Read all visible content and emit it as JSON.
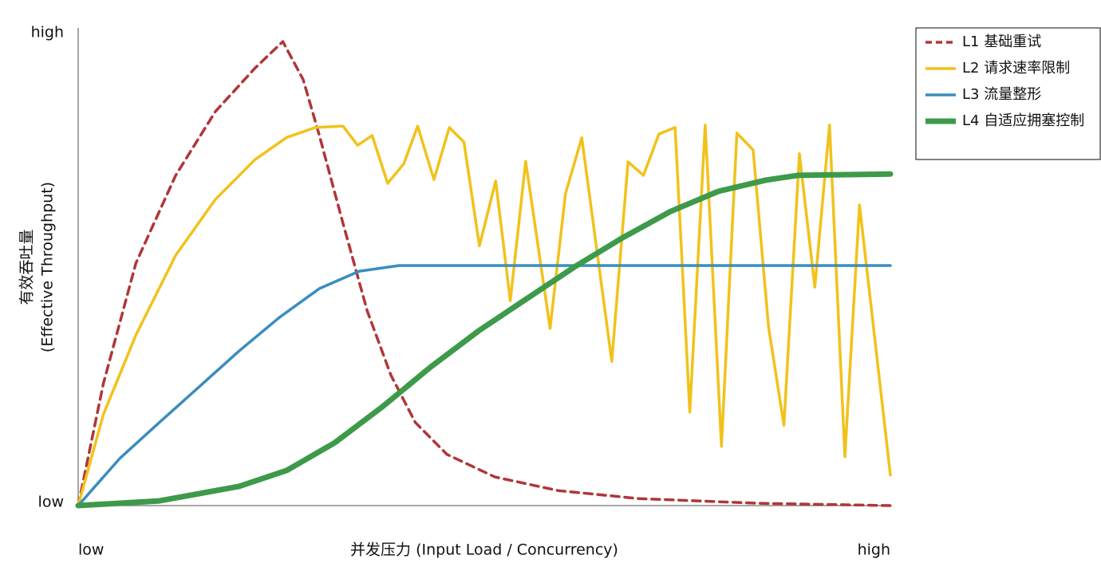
{
  "chart_data": {
    "type": "line",
    "x_label": "并发压力 (Input Load / Concurrency)",
    "y_label": [
      "有效吞吐量",
      "(Effective Throughput)"
    ],
    "xlim": [
      0,
      100
    ],
    "ylim": [
      0,
      100
    ],
    "xticks": [
      {
        "value": 0,
        "label": "low"
      },
      {
        "value": 100,
        "label": "high"
      }
    ],
    "yticks": [
      {
        "value": 0,
        "label": "low"
      },
      {
        "value": 100,
        "label": "high"
      }
    ],
    "grid": false,
    "legend_location": "upper right",
    "series": [
      {
        "name": "L1 基础重试",
        "color": "#b0363a",
        "line_style": "dashed",
        "x": [
          0,
          3.1,
          7.1,
          12,
          16.9,
          21.8,
          25.2,
          27.7,
          29.7,
          32.6,
          35.6,
          38.5,
          41.5,
          45.4,
          51.3,
          59.1,
          69,
          83.7,
          100
        ],
        "values": [
          0,
          26,
          51.6,
          70.3,
          83.9,
          93.2,
          98.8,
          90.7,
          78.8,
          60.1,
          41.4,
          27.8,
          17.7,
          10.9,
          6.1,
          3.2,
          1.5,
          0.5,
          0
        ]
      },
      {
        "name": "L2 请求速率限制",
        "color": "#f2c21b",
        "line_style": "solid",
        "x": [
          0,
          3.1,
          7.1,
          12,
          16.9,
          21.8,
          25.7,
          29.2,
          32.6,
          34.4,
          36.2,
          38.1,
          40.1,
          41.8,
          43.8,
          45.7,
          47.5,
          49.4,
          51.4,
          53.2,
          55.1,
          58.1,
          60,
          62,
          65.7,
          67.7,
          69.6,
          71.5,
          73.5,
          75.3,
          77.2,
          79.2,
          81.1,
          83.1,
          85,
          86.9,
          88.8,
          90.7,
          92.5,
          94.4,
          96.2,
          100
        ],
        "values": [
          0,
          19.4,
          36.3,
          53.3,
          65.2,
          73.7,
          78.4,
          80.5,
          80.8,
          76.7,
          78.8,
          68.6,
          72.8,
          80.8,
          69.4,
          80.5,
          77.4,
          55.3,
          69.1,
          43.6,
          73.3,
          37.7,
          66.4,
          78.3,
          30.7,
          73.2,
          70.3,
          79.1,
          80.5,
          19.9,
          81,
          12.6,
          79.3,
          75.7,
          38,
          17.1,
          74.9,
          46.5,
          81,
          10.4,
          64,
          6.5
        ]
      },
      {
        "name": "L3 流量整形",
        "color": "#3b8dbd",
        "line_style": "solid",
        "x": [
          0,
          5.1,
          10,
          14.9,
          19.8,
          24.8,
          29.7,
          34.6,
          39.5,
          100
        ],
        "values": [
          0,
          10,
          17.7,
          25.3,
          32.9,
          40.1,
          46.2,
          49.9,
          51.1,
          51.1
        ]
      },
      {
        "name": "L4 自适应拥塞控制",
        "color": "#3d9a4a",
        "line_style": "solid",
        "x": [
          0,
          10,
          19.8,
          25.7,
          31.6,
          37.5,
          43.4,
          49.3,
          55.2,
          61.1,
          67,
          72.9,
          78.8,
          84.7,
          88.6,
          100
        ],
        "values": [
          0,
          1,
          4.1,
          7.5,
          13.4,
          21.1,
          29.5,
          37.2,
          44,
          50.8,
          57,
          62.6,
          66.9,
          69.3,
          70.3,
          70.6
        ]
      }
    ]
  }
}
